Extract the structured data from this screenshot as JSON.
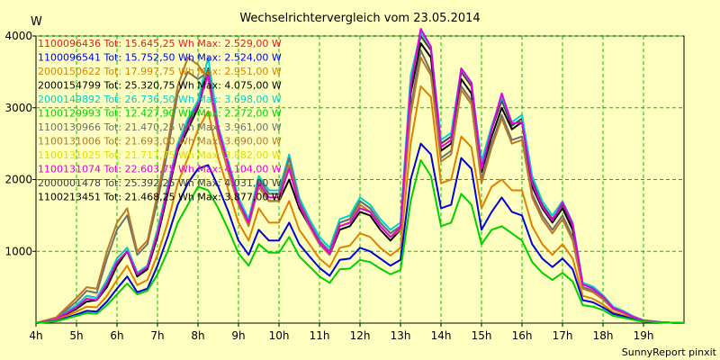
{
  "chart_data": {
    "type": "line",
    "title": "Wechselrichtervergleich vom 23.05.2014",
    "ylabel": "W",
    "xlabel": "",
    "footer": "SunnyReport pinxit",
    "xlim": [
      4,
      20
    ],
    "ylim": [
      0,
      4000
    ],
    "yticks": [
      1000,
      2000,
      3000,
      4000
    ],
    "xticks": [
      {
        "v": 4,
        "label": "4h"
      },
      {
        "v": 5,
        "label": "5h"
      },
      {
        "v": 6,
        "label": "6h"
      },
      {
        "v": 7,
        "label": "7h"
      },
      {
        "v": 8,
        "label": "8h"
      },
      {
        "v": 9,
        "label": "9h"
      },
      {
        "v": 10,
        "label": "10h"
      },
      {
        "v": 11,
        "label": "11h"
      },
      {
        "v": 12,
        "label": "12h"
      },
      {
        "v": 13,
        "label": "13h"
      },
      {
        "v": 14,
        "label": "14h"
      },
      {
        "v": 15,
        "label": "15h"
      },
      {
        "v": 16,
        "label": "16h"
      },
      {
        "v": 17,
        "label": "17h"
      },
      {
        "v": 18,
        "label": "18h"
      },
      {
        "v": 19,
        "label": "19h"
      }
    ],
    "grid": true,
    "legend_position": "top-left",
    "series_labels": [
      {
        "text": "1100096436 Tot: 15.645,25 Wh Max: 2.529,00 W",
        "color": "#e02020"
      },
      {
        "text": "1100096541 Tot: 15.752,50 Wh Max: 2.524,00 W",
        "color": "#0000e0"
      },
      {
        "text": "2000150622 Tot: 17.997,75 Wh Max: 2.951,00 W",
        "color": "#e08000"
      },
      {
        "text": "2000154799 Tot: 25.320,75 Wh Max: 4.075,00 W",
        "color": "#000000"
      },
      {
        "text": "2000149892 Tot: 26.736,50 Wh Max: 3.698,00 W",
        "color": "#00d0d0"
      },
      {
        "text": "1100129993 Tot: 12.427,90 Wh Max: 2.272,00 W",
        "color": "#00d000"
      },
      {
        "text": "1100130966 Tot: 21.470,25 Wh Max: 3.961,00 W",
        "color": "#707070"
      },
      {
        "text": "1100131006 Tot: 21.693,00 Wh Max: 3.690,00 W",
        "color": "#b87828"
      },
      {
        "text": "1100131025 Tot: 21.717,75 Wh Max: 3.882,00 W",
        "color": "#e0e000"
      },
      {
        "text": "1100131074 Tot: 22.603,75 Wh Max: 4.104,00 W",
        "color": "#e000e0"
      },
      {
        "text": "2000001478 Tot: 25.392,25 Wh Max: 4.031,00 W",
        "color": "#404040"
      },
      {
        "text": "1100213451 Tot: 21.468,25 Wh Max: 3.877,00 W",
        "color": "#000000"
      }
    ],
    "x": [
      4.0,
      4.5,
      5.0,
      5.25,
      5.5,
      5.75,
      6.0,
      6.25,
      6.5,
      6.75,
      7.0,
      7.25,
      7.5,
      7.75,
      8.0,
      8.25,
      8.5,
      8.75,
      9.0,
      9.25,
      9.5,
      9.75,
      10.0,
      10.25,
      10.5,
      10.75,
      11.0,
      11.25,
      11.5,
      11.75,
      12.0,
      12.25,
      12.5,
      12.75,
      13.0,
      13.25,
      13.5,
      13.75,
      14.0,
      14.25,
      14.5,
      14.75,
      15.0,
      15.25,
      15.5,
      15.75,
      16.0,
      16.25,
      16.5,
      16.75,
      17.0,
      17.25,
      17.5,
      17.75,
      18.0,
      18.25,
      18.5,
      18.75,
      19.0,
      19.5,
      20.0
    ],
    "series": [
      {
        "color": "#000000",
        "values": [
          0,
          50,
          200,
          300,
          320,
          500,
          800,
          1000,
          650,
          750,
          1200,
          1800,
          2400,
          2700,
          3000,
          3500,
          2700,
          2200,
          1700,
          1400,
          1900,
          1700,
          1700,
          2000,
          1600,
          1350,
          1100,
          950,
          1300,
          1350,
          1550,
          1500,
          1300,
          1150,
          1300,
          3200,
          3900,
          3700,
          2400,
          2500,
          3400,
          3200,
          2100,
          2600,
          3000,
          2700,
          2800,
          1900,
          1600,
          1400,
          1600,
          1300,
          500,
          450,
          350,
          200,
          150,
          80,
          30,
          10,
          0
        ]
      },
      {
        "color": "#404040",
        "values": [
          0,
          60,
          250,
          380,
          350,
          600,
          900,
          1050,
          700,
          800,
          1300,
          1900,
          2500,
          2800,
          3050,
          3550,
          2700,
          2200,
          1700,
          1400,
          2000,
          1800,
          1800,
          2300,
          1700,
          1400,
          1150,
          1000,
          1400,
          1450,
          1700,
          1600,
          1400,
          1250,
          1350,
          3400,
          4000,
          3800,
          2500,
          2600,
          3500,
          3300,
          2200,
          2700,
          3100,
          2750,
          2850,
          2000,
          1650,
          1450,
          1650,
          1350,
          550,
          500,
          380,
          220,
          160,
          90,
          40,
          10,
          0
        ]
      },
      {
        "color": "#00d0d0",
        "values": [
          0,
          60,
          250,
          380,
          350,
          600,
          900,
          1050,
          700,
          800,
          1300,
          1900,
          2500,
          2850,
          3100,
          3700,
          2750,
          2250,
          1750,
          1450,
          2050,
          1850,
          1850,
          2350,
          1750,
          1450,
          1200,
          1050,
          1450,
          1500,
          1750,
          1650,
          1450,
          1300,
          1400,
          3450,
          4050,
          3850,
          2550,
          2650,
          3550,
          3350,
          2250,
          2750,
          3150,
          2800,
          2900,
          2050,
          1700,
          1500,
          1700,
          1400,
          560,
          510,
          390,
          230,
          170,
          95,
          40,
          10,
          0
        ]
      },
      {
        "color": "#707070",
        "values": [
          0,
          70,
          300,
          450,
          420,
          900,
          1300,
          1500,
          950,
          1100,
          1700,
          2400,
          3200,
          3500,
          3400,
          3500,
          2700,
          2200,
          1700,
          1400,
          2000,
          1800,
          1800,
          2300,
          1700,
          1400,
          1150,
          1000,
          1400,
          1450,
          1700,
          1600,
          1400,
          1250,
          1350,
          3000,
          3800,
          3500,
          2300,
          2400,
          3300,
          3100,
          2000,
          2500,
          2900,
          2550,
          2600,
          1800,
          1500,
          1300,
          1500,
          1200,
          500,
          450,
          350,
          200,
          150,
          80,
          30,
          10,
          0
        ]
      },
      {
        "color": "#b87828",
        "values": [
          0,
          80,
          350,
          500,
          480,
          1000,
          1400,
          1600,
          1000,
          1150,
          1800,
          2500,
          3300,
          3700,
          3600,
          3400,
          2600,
          2100,
          1650,
          1350,
          1900,
          1700,
          1700,
          2200,
          1650,
          1350,
          1100,
          950,
          1350,
          1400,
          1650,
          1550,
          1350,
          1200,
          1300,
          2900,
          3700,
          3450,
          2250,
          2350,
          3250,
          3050,
          1950,
          2450,
          2850,
          2500,
          2550,
          1750,
          1450,
          1250,
          1450,
          1150,
          480,
          430,
          330,
          190,
          140,
          75,
          30,
          10,
          0
        ]
      },
      {
        "color": "#e000e0",
        "values": [
          0,
          55,
          220,
          340,
          320,
          550,
          850,
          1000,
          680,
          780,
          1250,
          1850,
          2450,
          2750,
          3050,
          3450,
          2700,
          2200,
          1700,
          1400,
          1950,
          1750,
          1750,
          2150,
          1650,
          1380,
          1120,
          970,
          1350,
          1400,
          1600,
          1550,
          1350,
          1200,
          1330,
          3300,
          4100,
          3850,
          2450,
          2550,
          3550,
          3350,
          2150,
          2700,
          3200,
          2780,
          2800,
          1950,
          1620,
          1430,
          1680,
          1380,
          540,
          480,
          370,
          210,
          155,
          85,
          35,
          10,
          0
        ]
      },
      {
        "color": "#e08000",
        "values": [
          0,
          40,
          160,
          230,
          220,
          380,
          600,
          800,
          530,
          600,
          950,
          1400,
          1950,
          2300,
          2700,
          2950,
          2300,
          1850,
          1400,
          1150,
          1600,
          1400,
          1400,
          1700,
          1300,
          1100,
          900,
          780,
          1050,
          1080,
          1250,
          1200,
          1050,
          940,
          1050,
          2500,
          3300,
          3150,
          1950,
          2000,
          2600,
          2450,
          1600,
          1900,
          2000,
          1850,
          1850,
          1350,
          1100,
          950,
          1100,
          900,
          380,
          340,
          260,
          150,
          110,
          60,
          25,
          10,
          0
        ]
      },
      {
        "color": "#0000e0",
        "values": [
          0,
          30,
          120,
          170,
          160,
          300,
          480,
          650,
          430,
          480,
          800,
          1200,
          1650,
          1950,
          2150,
          2200,
          1900,
          1550,
          1150,
          950,
          1300,
          1150,
          1150,
          1400,
          1100,
          930,
          770,
          660,
          880,
          900,
          1050,
          1000,
          900,
          800,
          880,
          2000,
          2500,
          2350,
          1600,
          1650,
          2300,
          2150,
          1300,
          1550,
          1750,
          1550,
          1500,
          1100,
          900,
          780,
          900,
          750,
          320,
          290,
          220,
          130,
          95,
          55,
          20,
          10,
          0
        ]
      },
      {
        "color": "#00d000",
        "values": [
          0,
          25,
          100,
          140,
          130,
          250,
          400,
          550,
          400,
          450,
          680,
          1000,
          1400,
          1650,
          1900,
          1850,
          1600,
          1300,
          970,
          800,
          1100,
          980,
          980,
          1200,
          930,
          790,
          650,
          560,
          750,
          760,
          880,
          850,
          760,
          680,
          740,
          1700,
          2270,
          2050,
          1350,
          1400,
          1800,
          1650,
          1100,
          1300,
          1350,
          1250,
          1150,
          850,
          700,
          600,
          700,
          580,
          250,
          230,
          180,
          100,
          75,
          45,
          20,
          10,
          0
        ]
      }
    ]
  }
}
